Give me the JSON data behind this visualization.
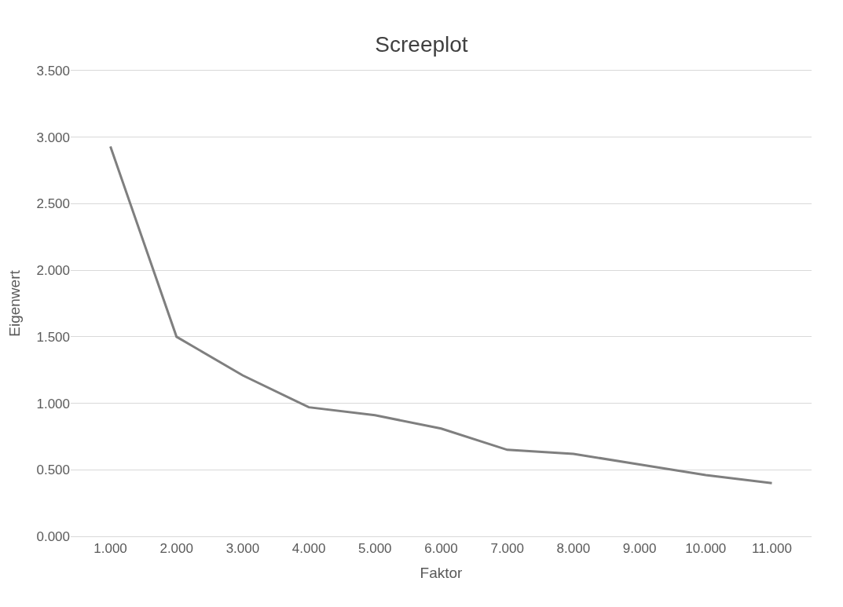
{
  "chart_data": {
    "type": "line",
    "title": "Screeplot",
    "xlabel": "Faktor",
    "ylabel": "Eigenwert",
    "categories": [
      "1.000",
      "2.000",
      "3.000",
      "4.000",
      "5.000",
      "6.000",
      "7.000",
      "8.000",
      "9.000",
      "10.000",
      "11.000"
    ],
    "series": [
      {
        "color": "#7f7f7f",
        "values": [
          2.93,
          1.5,
          1.21,
          0.97,
          0.91,
          0.81,
          0.65,
          0.62,
          0.54,
          0.46,
          0.4
        ]
      }
    ],
    "ylim": [
      0,
      3.5
    ],
    "yticks": [
      {
        "value": 0,
        "label": "0.000"
      },
      {
        "value": 0.5,
        "label": "0.500"
      },
      {
        "value": 1,
        "label": "1.000"
      },
      {
        "value": 1.5,
        "label": "1.500"
      },
      {
        "value": 2,
        "label": "2.000"
      },
      {
        "value": 2.5,
        "label": "2.500"
      },
      {
        "value": 3,
        "label": "3.000"
      },
      {
        "value": 3.5,
        "label": "3.500"
      }
    ],
    "grid": "y",
    "marker": "none",
    "line_style": "solid"
  }
}
